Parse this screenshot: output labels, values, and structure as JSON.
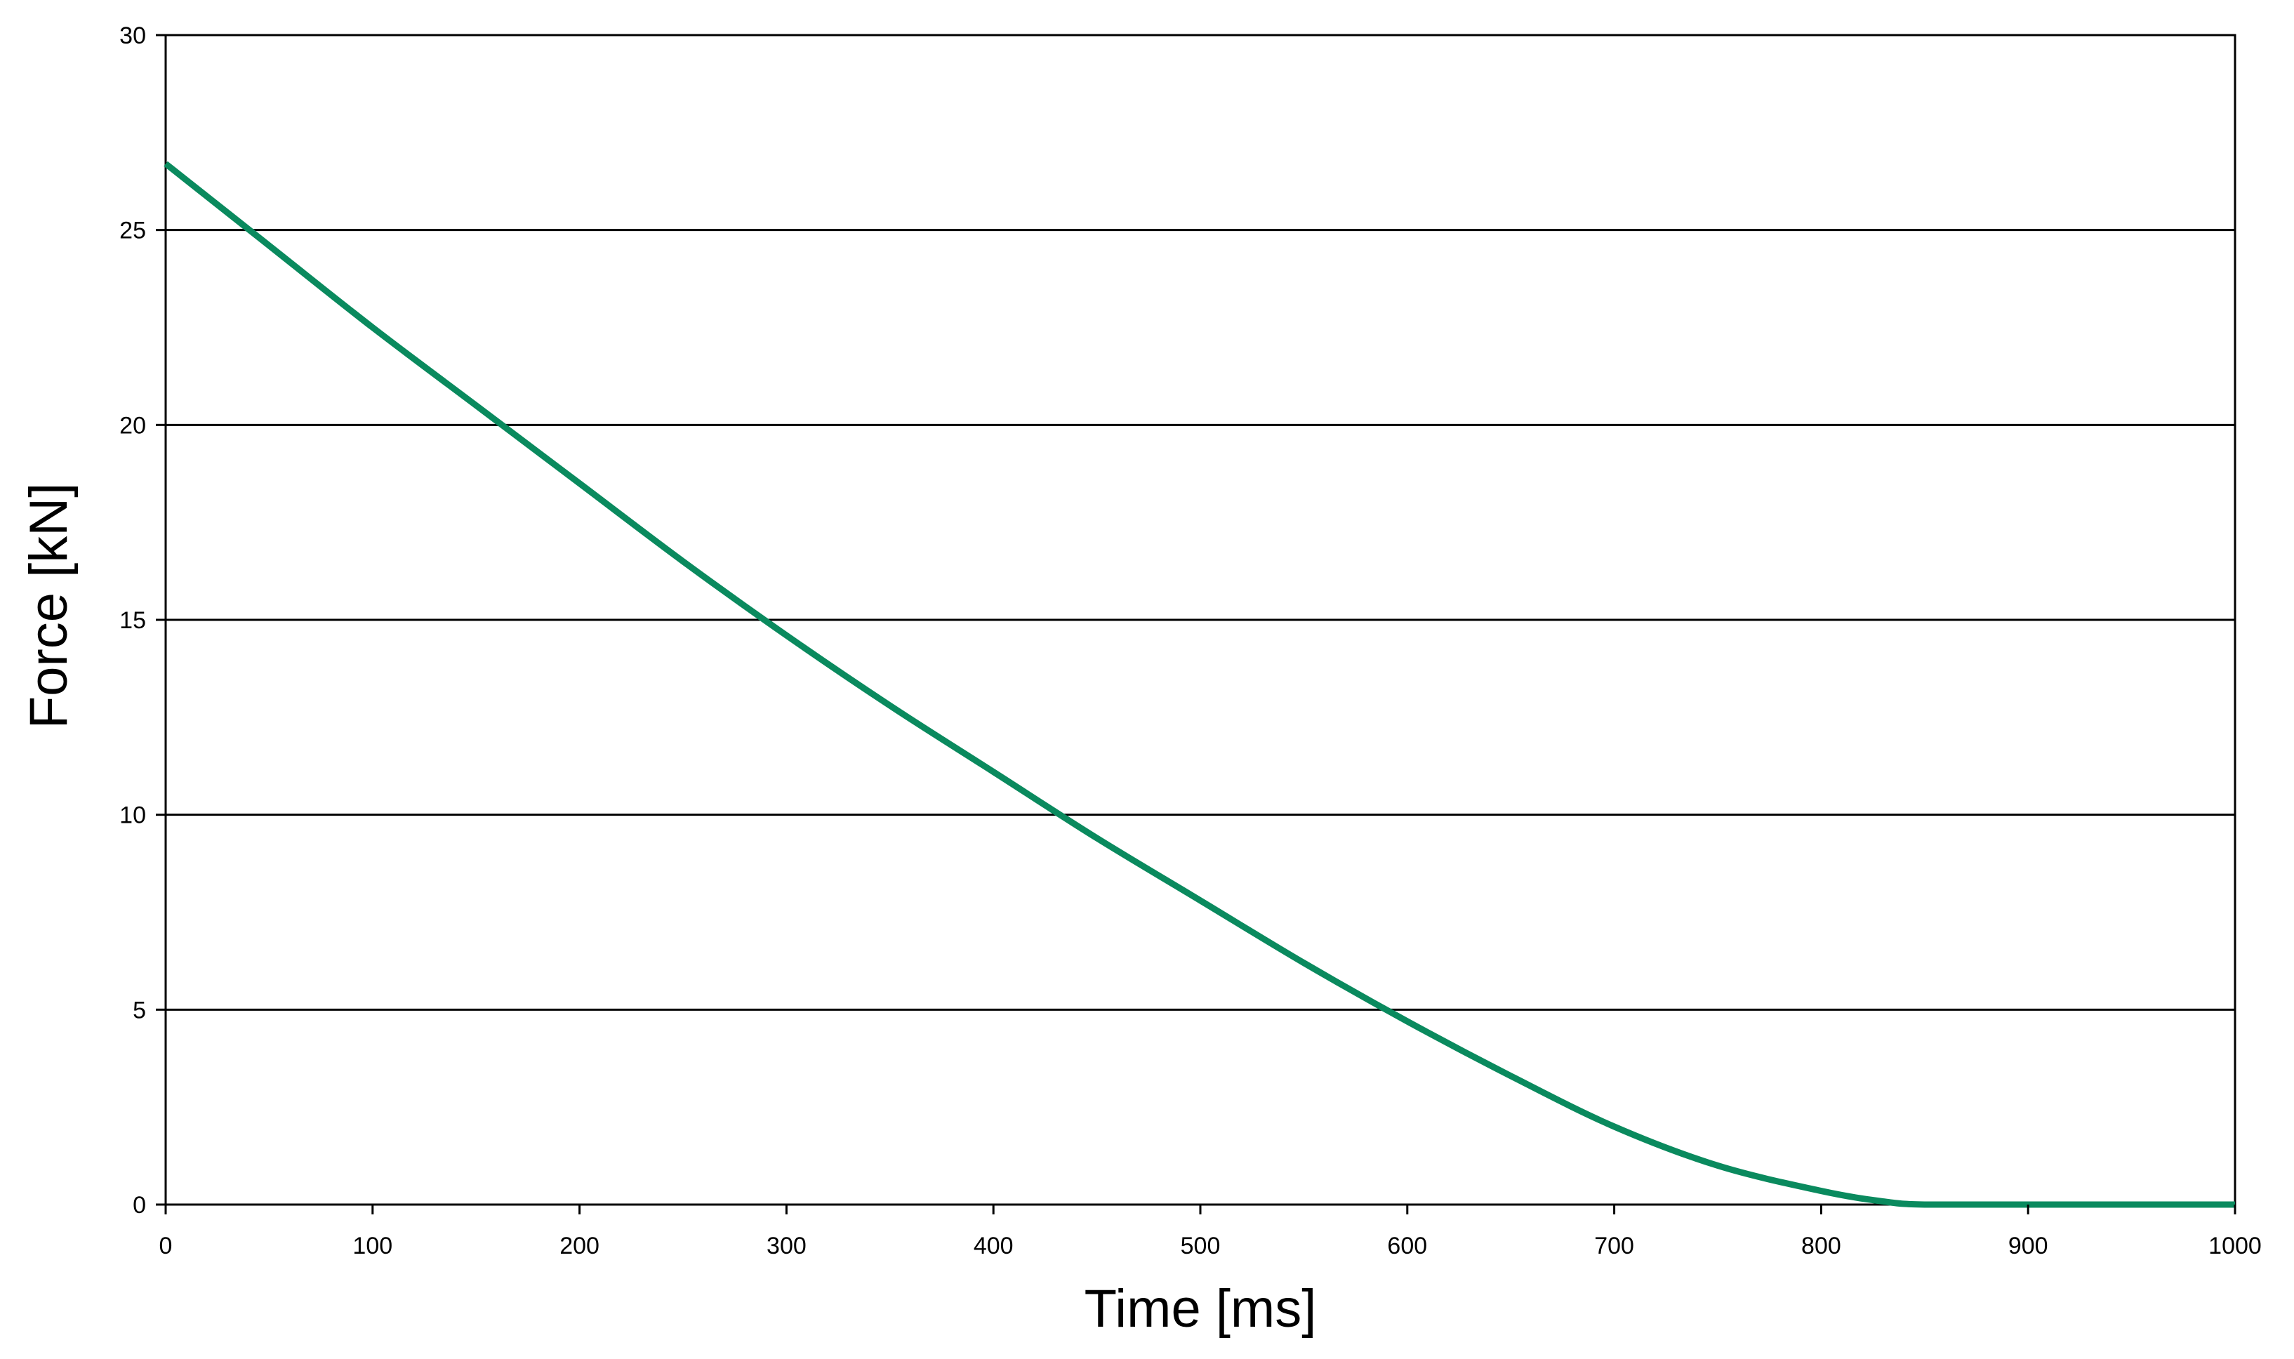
{
  "colors": {
    "series": "#0a8a5e",
    "grid": "#000000",
    "frame": "#000000",
    "background": "#ffffff",
    "ylabel": "#c05a00"
  },
  "chart_data": {
    "type": "line",
    "title": "",
    "xlabel": "Time [ms]",
    "ylabel": "Force [kN]",
    "xlim": [
      0,
      1000
    ],
    "ylim": [
      0,
      30
    ],
    "xticks": [
      0,
      100,
      200,
      300,
      400,
      500,
      600,
      700,
      800,
      900,
      1000
    ],
    "yticks": [
      0,
      5,
      10,
      15,
      20,
      25,
      30
    ],
    "grid": "horizontal",
    "legend": "none",
    "series": [
      {
        "x": [
          0,
          50,
          100,
          150,
          200,
          250,
          300,
          350,
          400,
          450,
          500,
          550,
          600,
          650,
          700,
          750,
          800,
          830,
          850,
          900,
          950,
          1000
        ],
        "y": [
          26.7,
          24.6,
          22.5,
          20.5,
          18.5,
          16.5,
          14.6,
          12.8,
          11.1,
          9.4,
          7.8,
          6.2,
          4.7,
          3.3,
          2.0,
          1.0,
          0.35,
          0.08,
          0.0,
          0.0,
          0.0,
          0.0
        ]
      }
    ]
  }
}
